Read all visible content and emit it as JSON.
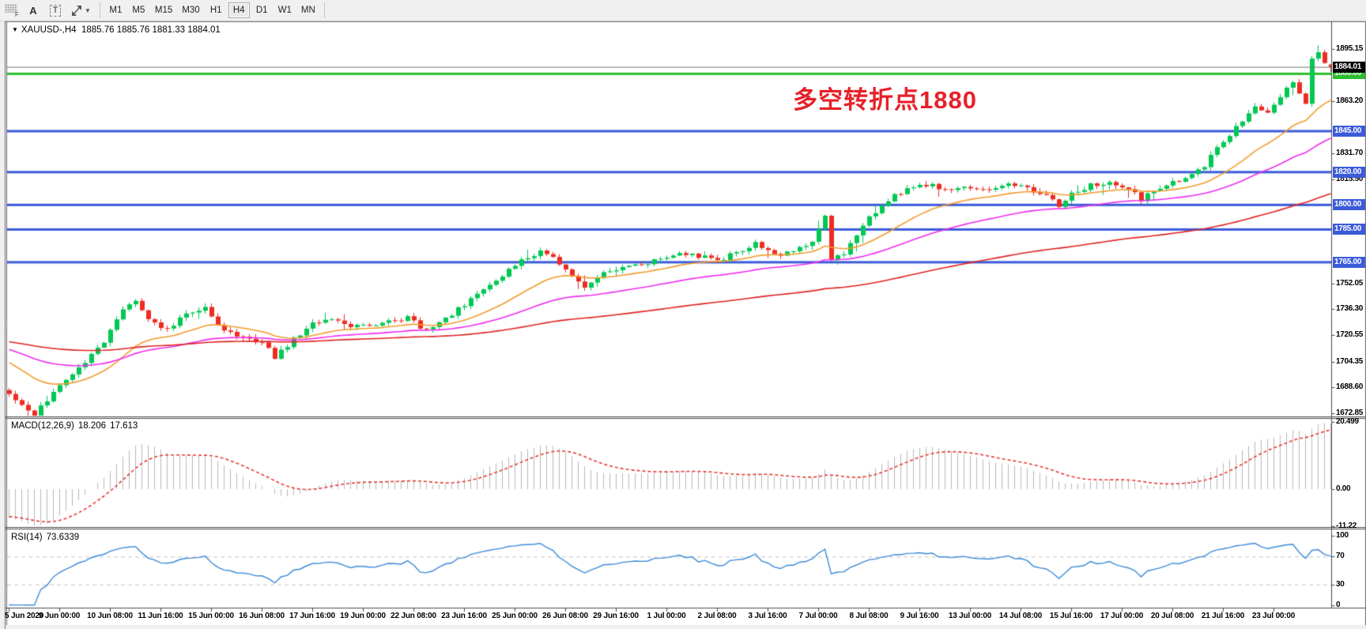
{
  "toolbar": {
    "grip_label": "F",
    "tools": [
      {
        "name": "text-label-tool",
        "label": "A"
      },
      {
        "name": "text-tool",
        "label": "T"
      }
    ],
    "timeframes": [
      "M1",
      "M5",
      "M15",
      "M30",
      "H1",
      "H4",
      "D1",
      "W1",
      "MN"
    ],
    "active_timeframe": "H4"
  },
  "chart": {
    "header": {
      "symbol": "XAUUSD-,H4",
      "ohlc": "1885.76 1885.76 1881.33 1884.01"
    },
    "annotation": {
      "text": "多空转折点1880",
      "color": "#e62129"
    }
  },
  "chart_data": {
    "type": "candlestick",
    "symbol": "XAUUSD",
    "timeframe": "H4",
    "bar_count": 210,
    "visible_price_range": [
      1671.9,
      1910.6
    ],
    "last_candle": {
      "open": 1885.76,
      "high": 1885.76,
      "low": 1881.33,
      "close": 1884.01
    },
    "price_anchors": [
      [
        0,
        1684
      ],
      [
        2,
        1677
      ],
      [
        4,
        1672
      ],
      [
        6,
        1681
      ],
      [
        9,
        1694
      ],
      [
        12,
        1704
      ],
      [
        15,
        1716
      ],
      [
        18,
        1737
      ],
      [
        20,
        1741
      ],
      [
        22,
        1729
      ],
      [
        25,
        1724
      ],
      [
        28,
        1733
      ],
      [
        31,
        1737
      ],
      [
        34,
        1723
      ],
      [
        37,
        1720
      ],
      [
        40,
        1716
      ],
      [
        42,
        1707
      ],
      [
        45,
        1718
      ],
      [
        48,
        1727
      ],
      [
        51,
        1730
      ],
      [
        54,
        1725
      ],
      [
        57,
        1727
      ],
      [
        60,
        1729
      ],
      [
        63,
        1731
      ],
      [
        66,
        1723
      ],
      [
        69,
        1731
      ],
      [
        72,
        1739
      ],
      [
        75,
        1748
      ],
      [
        78,
        1757
      ],
      [
        81,
        1766
      ],
      [
        84,
        1772
      ],
      [
        86,
        1768
      ],
      [
        89,
        1757
      ],
      [
        91,
        1750
      ],
      [
        94,
        1759
      ],
      [
        97,
        1761
      ],
      [
        100,
        1764
      ],
      [
        103,
        1767
      ],
      [
        106,
        1771
      ],
      [
        109,
        1769
      ],
      [
        112,
        1766
      ],
      [
        115,
        1771
      ],
      [
        118,
        1777
      ],
      [
        121,
        1769
      ],
      [
        124,
        1772
      ],
      [
        127,
        1777
      ],
      [
        129,
        1794
      ],
      [
        130,
        1766
      ],
      [
        132,
        1771
      ],
      [
        134,
        1781
      ],
      [
        136,
        1792
      ],
      [
        138,
        1800
      ],
      [
        140,
        1806
      ],
      [
        143,
        1811
      ],
      [
        146,
        1812
      ],
      [
        149,
        1808
      ],
      [
        152,
        1811
      ],
      [
        155,
        1809
      ],
      [
        158,
        1814
      ],
      [
        161,
        1810
      ],
      [
        164,
        1806
      ],
      [
        166,
        1799
      ],
      [
        168,
        1807
      ],
      [
        171,
        1812
      ],
      [
        174,
        1814
      ],
      [
        177,
        1810
      ],
      [
        179,
        1803
      ],
      [
        181,
        1809
      ],
      [
        184,
        1814
      ],
      [
        187,
        1818
      ],
      [
        189,
        1824
      ],
      [
        191,
        1836
      ],
      [
        193,
        1843
      ],
      [
        195,
        1852
      ],
      [
        197,
        1861
      ],
      [
        199,
        1857
      ],
      [
        201,
        1866
      ],
      [
        203,
        1876
      ],
      [
        204,
        1869
      ],
      [
        205,
        1861
      ],
      [
        206,
        1890
      ],
      [
        207,
        1893
      ],
      [
        208,
        1886
      ],
      [
        209,
        1884
      ]
    ],
    "y_axis_ticks": [
      {
        "label": "1895.15",
        "price": 1895.15
      },
      {
        "label": "1863.20",
        "price": 1863.2
      },
      {
        "label": "1831.70",
        "price": 1831.7
      },
      {
        "label": "1815.50",
        "price": 1815.5
      },
      {
        "label": "1752.05",
        "price": 1752.05
      },
      {
        "label": "1736.30",
        "price": 1736.3
      },
      {
        "label": "1720.55",
        "price": 1720.55
      },
      {
        "label": "1704.35",
        "price": 1704.35
      },
      {
        "label": "1688.60",
        "price": 1688.6
      },
      {
        "label": "1672.85",
        "price": 1672.85
      }
    ],
    "x_axis_ticks": [
      "5 Jun 2020",
      "9 Jun 00:00",
      "10 Jun 08:00",
      "11 Jun 16:00",
      "15 Jun 00:00",
      "16 Jun 08:00",
      "17 Jun 16:00",
      "19 Jun 00:00",
      "22 Jun 08:00",
      "23 Jun 16:00",
      "25 Jun 00:00",
      "26 Jun 08:00",
      "29 Jun 16:00",
      "1 Jul 00:00",
      "2 Jul 08:00",
      "3 Jul 16:00",
      "7 Jul 00:00",
      "8 Jul 08:00",
      "9 Jul 16:00",
      "13 Jul 00:00",
      "14 Jul 08:00",
      "15 Jul 16:00",
      "17 Jul 00:00",
      "20 Jul 08:00",
      "21 Jul 16:00",
      "23 Jul 00:00"
    ],
    "horizontal_lines": [
      {
        "price": 1880.0,
        "label": "1880.00",
        "color": "#2dbe2d"
      },
      {
        "price": 1845.0,
        "label": "1845.00",
        "color": "#3b5bd9"
      },
      {
        "price": 1820.0,
        "label": "1820.00",
        "color": "#3b5bd9"
      },
      {
        "price": 1800.0,
        "label": "1800.00",
        "color": "#3b5bd9"
      },
      {
        "price": 1785.0,
        "label": "1785.00",
        "color": "#3b5bd9"
      },
      {
        "price": 1765.0,
        "label": "1765.00",
        "color": "#3b5bd9"
      }
    ],
    "current_price": {
      "value": 1884.01,
      "label": "1884.01",
      "badge_color": "#000000"
    },
    "candle_up_color": "#00c853",
    "candle_down_color": "#ee2c22",
    "moving_averages": [
      {
        "name": "fast",
        "color": "#f39c2d",
        "alpha": 0.1,
        "init": 1706
      },
      {
        "name": "mid",
        "color": "#ef2def",
        "alpha": 0.042,
        "init": 1713
      },
      {
        "name": "slow",
        "color": "#e02424",
        "alpha": 0.016,
        "init": 1717
      }
    ],
    "indicators": {
      "macd": {
        "title": "MACD(12,26,9)",
        "value_main": "18.206",
        "value_signal": "17.613",
        "axis": [
          {
            "label": "20.499",
            "value": 20.499
          },
          {
            "label": "0.00",
            "value": 0
          },
          {
            "label": "-11.22",
            "value": -11.22
          }
        ],
        "histogram_color": "#b8b8b8",
        "signal_color": "#e53935"
      },
      "rsi": {
        "title": "RSI(14)",
        "value": "73.6339",
        "axis": [
          {
            "label": "100",
            "value": 100
          },
          {
            "label": "70",
            "value": 70
          },
          {
            "label": "30",
            "value": 30
          },
          {
            "label": "0",
            "value": 0
          }
        ],
        "levels": [
          70,
          30
        ],
        "line_color": "#3c8bd9"
      }
    }
  }
}
